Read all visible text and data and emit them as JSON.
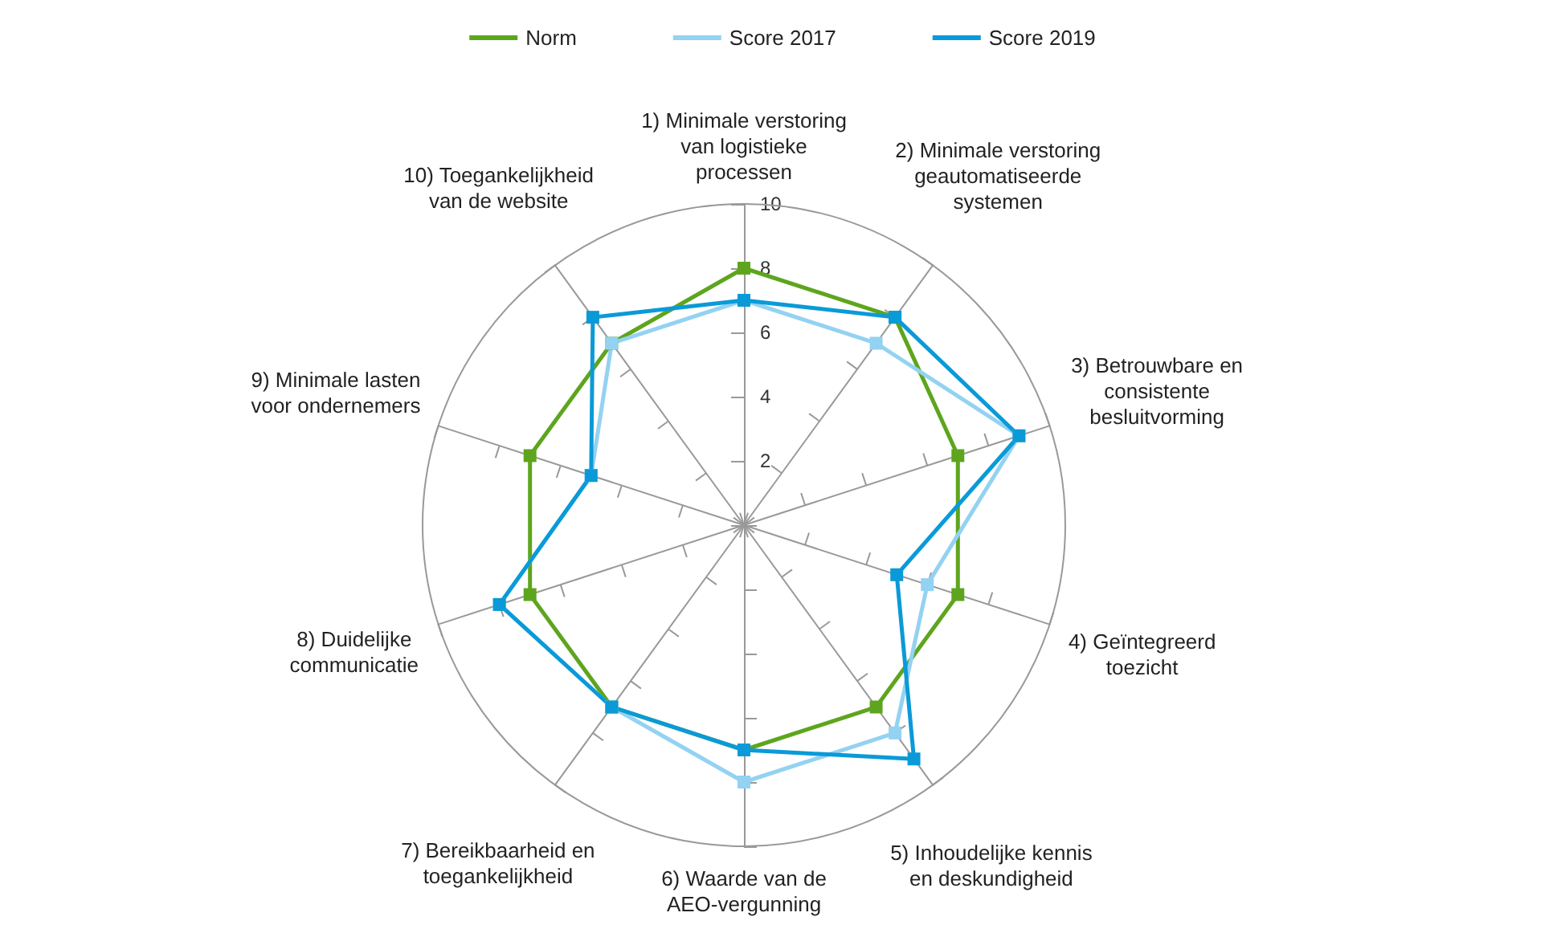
{
  "chart_data": {
    "type": "radar",
    "categories": [
      "1) Minimale verstoring van logistieke processen",
      "2) Minimale verstoring geautomatiseerde systemen",
      "3) Betrouwbare en consistente besluitvorming",
      "4) Geïntegreerd toezicht",
      "5) Inhoudelijke kennis en deskundigheid",
      "6) Waarde van de AEO-vergunning",
      "7) Bereikbaarheid en toegankelijkheid",
      "8) Duidelijke communicatie",
      "9) Minimale lasten voor ondernemers",
      "10) Toegankelijkheid van de website"
    ],
    "series": [
      {
        "name": "Norm",
        "color": "#5ea51e",
        "values": [
          8,
          8,
          7,
          7,
          7,
          7,
          7,
          7,
          7,
          7
        ]
      },
      {
        "name": "Score 2017",
        "color": "#93d2f2",
        "values": [
          7,
          7,
          9,
          6,
          8,
          8,
          7,
          8,
          5,
          7
        ]
      },
      {
        "name": "Score 2019",
        "color": "#0a9ad8",
        "values": [
          7,
          8,
          9,
          5,
          9,
          7,
          7,
          8,
          5,
          8
        ]
      }
    ],
    "ylim": [
      0,
      10
    ],
    "yticks": [
      2,
      4,
      6,
      8,
      10
    ],
    "legend": "top",
    "marker": "square"
  }
}
